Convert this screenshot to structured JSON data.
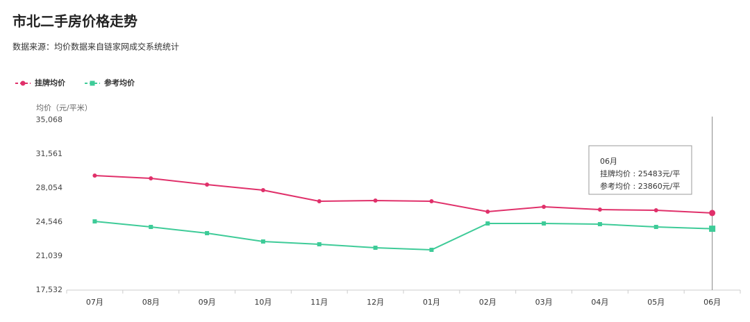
{
  "chart_data": {
    "type": "line",
    "title": "市北二手房价格走势",
    "subtitle": "数据来源：均价数据来自链家网成交系统统计",
    "y_label": "均价（元/平米）",
    "categories": [
      "07月",
      "08月",
      "09月",
      "10月",
      "11月",
      "12月",
      "01月",
      "02月",
      "03月",
      "04月",
      "05月",
      "06月"
    ],
    "series": [
      {
        "name": "挂牌均价",
        "color": "#e0306a",
        "marker": "circle",
        "values": [
          29341,
          29055,
          28411,
          27838,
          26693,
          26765,
          26693,
          25619,
          26120,
          25834,
          25763,
          25483
        ]
      },
      {
        "name": "参考均价",
        "color": "#3ecb98",
        "marker": "square",
        "values": [
          24617,
          24045,
          23401,
          22542,
          22256,
          21898,
          21683,
          24403,
          24403,
          24331,
          24045,
          23860
        ]
      }
    ],
    "ylim": [
      17532,
      35068
    ],
    "yticks": [
      {
        "value": 17532,
        "label": "17,532"
      },
      {
        "value": 21039,
        "label": "21,039"
      },
      {
        "value": 24546,
        "label": "24,546"
      },
      {
        "value": 28054,
        "label": "28,054"
      },
      {
        "value": 31561,
        "label": "31,561"
      },
      {
        "value": 35068,
        "label": "35,068"
      }
    ],
    "grid": false,
    "legend": "top-left",
    "tooltip": {
      "title": "06月",
      "lines": [
        "挂牌均价 : 25483元/平",
        "参考均价 : 23860元/平"
      ]
    }
  }
}
